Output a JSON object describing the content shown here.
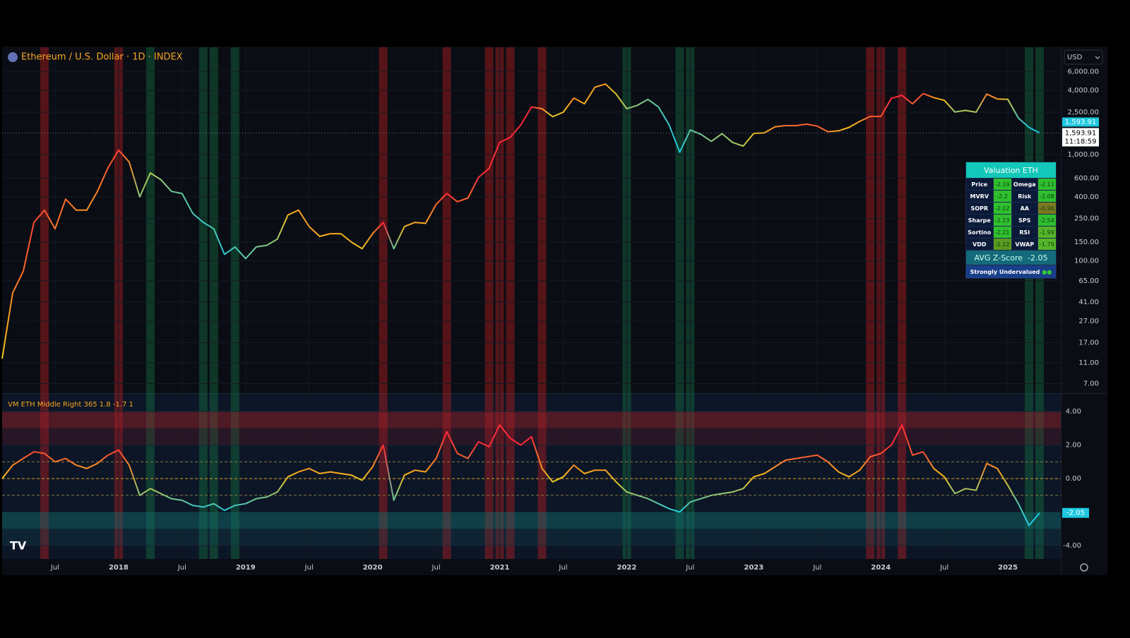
{
  "header": {
    "title": "Ethereum / U.S. Dollar · 1D · INDEX",
    "currency": "USD",
    "price_label": {
      "value": 1593.91,
      "label": "1,593.91"
    },
    "countdown": "11:18:59"
  },
  "chart_data": [
    {
      "type": "line",
      "yscale": "log",
      "x": [
        "2017-02",
        "2017-03",
        "2017-04",
        "2017-05",
        "2017-06",
        "2017-07",
        "2017-08",
        "2017-09",
        "2017-10",
        "2017-11",
        "2017-12",
        "2018-01",
        "2018-02",
        "2018-03",
        "2018-04",
        "2018-05",
        "2018-06",
        "2018-07",
        "2018-08",
        "2018-09",
        "2018-10",
        "2018-11",
        "2018-12",
        "2019-01",
        "2019-02",
        "2019-03",
        "2019-04",
        "2019-05",
        "2019-06",
        "2019-07",
        "2019-08",
        "2019-09",
        "2019-10",
        "2019-11",
        "2019-12",
        "2020-01",
        "2020-02",
        "2020-03",
        "2020-04",
        "2020-05",
        "2020-06",
        "2020-07",
        "2020-08",
        "2020-09",
        "2020-10",
        "2020-11",
        "2020-12",
        "2021-01",
        "2021-02",
        "2021-03",
        "2021-04",
        "2021-05",
        "2021-06",
        "2021-07",
        "2021-08",
        "2021-09",
        "2021-10",
        "2021-11",
        "2021-12",
        "2022-01",
        "2022-02",
        "2022-03",
        "2022-04",
        "2022-05",
        "2022-06",
        "2022-07",
        "2022-08",
        "2022-09",
        "2022-10",
        "2022-11",
        "2022-12",
        "2023-01",
        "2023-02",
        "2023-03",
        "2023-04",
        "2023-05",
        "2023-06",
        "2023-07",
        "2023-08",
        "2023-09",
        "2023-10",
        "2023-11",
        "2023-12",
        "2024-01",
        "2024-02",
        "2024-03",
        "2024-04",
        "2024-05",
        "2024-06",
        "2024-07",
        "2024-08",
        "2024-09",
        "2024-10",
        "2024-11",
        "2024-12",
        "2025-01",
        "2025-02",
        "2025-03",
        "2025-04"
      ],
      "series": [
        {
          "values": [
            12,
            50,
            80,
            230,
            300,
            200,
            380,
            300,
            300,
            450,
            750,
            1100,
            850,
            400,
            670,
            580,
            450,
            430,
            280,
            230,
            200,
            115,
            135,
            105,
            135,
            140,
            160,
            270,
            300,
            210,
            170,
            180,
            180,
            150,
            130,
            180,
            230,
            130,
            210,
            230,
            225,
            340,
            430,
            360,
            390,
            610,
            740,
            1300,
            1450,
            1900,
            2800,
            2700,
            2270,
            2500,
            3400,
            3000,
            4300,
            4600,
            3700,
            2700,
            2900,
            3300,
            2800,
            1900,
            1050,
            1700,
            1550,
            1330,
            1570,
            1300,
            1200,
            1580,
            1600,
            1820,
            1870,
            1870,
            1930,
            1850,
            1640,
            1670,
            1800,
            2050,
            2280,
            2280,
            3380,
            3600,
            3000,
            3750,
            3430,
            3230,
            2510,
            2600,
            2500,
            3700,
            3330,
            3300,
            2200,
            1800,
            1594
          ]
        }
      ],
      "xlim": [
        "2017-02",
        "2025-06"
      ],
      "xticks": [
        {
          "value": "2017-07",
          "label": "Jul"
        },
        {
          "value": "2018-01",
          "label": "2018"
        },
        {
          "value": "2018-07",
          "label": "Jul"
        },
        {
          "value": "2019-01",
          "label": "2019"
        },
        {
          "value": "2019-07",
          "label": "Jul"
        },
        {
          "value": "2020-01",
          "label": "2020"
        },
        {
          "value": "2020-07",
          "label": "Jul"
        },
        {
          "value": "2021-01",
          "label": "2021"
        },
        {
          "value": "2021-07",
          "label": "Jul"
        },
        {
          "value": "2022-01",
          "label": "2022"
        },
        {
          "value": "2022-07",
          "label": "Jul"
        },
        {
          "value": "2023-01",
          "label": "2023"
        },
        {
          "value": "2023-07",
          "label": "Jul"
        },
        {
          "value": "2024-01",
          "label": "2024"
        },
        {
          "value": "2024-07",
          "label": "Jul"
        },
        {
          "value": "2025-01",
          "label": "2025"
        }
      ],
      "ylim": [
        5.7,
        10200
      ],
      "yticks": [
        {
          "value": 6000,
          "label": "6,000.00"
        },
        {
          "value": 4000,
          "label": "4,000.00"
        },
        {
          "value": 2500,
          "label": "2,500.00"
        },
        {
          "value": 1000,
          "label": "1,000.00"
        },
        {
          "value": 600,
          "label": "600.00"
        },
        {
          "value": 400,
          "label": "400.00"
        },
        {
          "value": 250,
          "label": "250.00"
        },
        {
          "value": 150,
          "label": "150.00"
        },
        {
          "value": 100,
          "label": "100.00"
        },
        {
          "value": 65,
          "label": "65.00"
        },
        {
          "value": 41,
          "label": "41.00"
        },
        {
          "value": 27,
          "label": "27.00"
        },
        {
          "value": 17,
          "label": "17.00"
        },
        {
          "value": 11,
          "label": "11.00"
        },
        {
          "value": 7,
          "label": "7.00"
        }
      ],
      "highlights": [
        {
          "at": "2017-06",
          "color": "red"
        },
        {
          "at": "2018-01",
          "color": "red"
        },
        {
          "at": "2018-04",
          "color": "green"
        },
        {
          "at": "2018-09",
          "color": "green"
        },
        {
          "at": "2018-10",
          "color": "green"
        },
        {
          "at": "2018-12",
          "color": "green"
        },
        {
          "at": "2020-02",
          "color": "red"
        },
        {
          "at": "2020-08",
          "color": "red"
        },
        {
          "at": "2020-12",
          "color": "red"
        },
        {
          "at": "2021-01",
          "color": "red"
        },
        {
          "at": "2021-02",
          "color": "red"
        },
        {
          "at": "2021-05",
          "color": "red"
        },
        {
          "at": "2022-01",
          "color": "green"
        },
        {
          "at": "2022-06",
          "color": "green"
        },
        {
          "at": "2022-07",
          "color": "green"
        },
        {
          "at": "2023-12",
          "color": "red"
        },
        {
          "at": "2024-01",
          "color": "red"
        },
        {
          "at": "2024-03",
          "color": "red"
        },
        {
          "at": "2025-03",
          "color": "green"
        },
        {
          "at": "2025-04",
          "color": "green"
        }
      ],
      "color_scale": [
        {
          "value": -2,
          "color": "#1ec8e0"
        },
        {
          "value": 0,
          "color": "#f5c518"
        },
        {
          "value": 2,
          "color": "#ff2a3a"
        }
      ]
    },
    {
      "type": "line",
      "title": "VM ETH Middle Right 365 1.8 -1.7 1",
      "x": [
        "2017-02",
        "2017-03",
        "2017-04",
        "2017-05",
        "2017-06",
        "2017-07",
        "2017-08",
        "2017-09",
        "2017-10",
        "2017-11",
        "2017-12",
        "2018-01",
        "2018-02",
        "2018-03",
        "2018-04",
        "2018-05",
        "2018-06",
        "2018-07",
        "2018-08",
        "2018-09",
        "2018-10",
        "2018-11",
        "2018-12",
        "2019-01",
        "2019-02",
        "2019-03",
        "2019-04",
        "2019-05",
        "2019-06",
        "2019-07",
        "2019-08",
        "2019-09",
        "2019-10",
        "2019-11",
        "2019-12",
        "2020-01",
        "2020-02",
        "2020-03",
        "2020-04",
        "2020-05",
        "2020-06",
        "2020-07",
        "2020-08",
        "2020-09",
        "2020-10",
        "2020-11",
        "2020-12",
        "2021-01",
        "2021-02",
        "2021-03",
        "2021-04",
        "2021-05",
        "2021-06",
        "2021-07",
        "2021-08",
        "2021-09",
        "2021-10",
        "2021-11",
        "2021-12",
        "2022-01",
        "2022-02",
        "2022-03",
        "2022-04",
        "2022-05",
        "2022-06",
        "2022-07",
        "2022-08",
        "2022-09",
        "2022-10",
        "2022-11",
        "2022-12",
        "2023-01",
        "2023-02",
        "2023-03",
        "2023-04",
        "2023-05",
        "2023-06",
        "2023-07",
        "2023-08",
        "2023-09",
        "2023-10",
        "2023-11",
        "2023-12",
        "2024-01",
        "2024-02",
        "2024-03",
        "2024-04",
        "2024-05",
        "2024-06",
        "2024-07",
        "2024-08",
        "2024-09",
        "2024-10",
        "2024-11",
        "2024-12",
        "2025-01",
        "2025-02",
        "2025-03",
        "2025-04"
      ],
      "series": [
        {
          "values": [
            0,
            0.8,
            1.2,
            1.6,
            1.5,
            1.0,
            1.2,
            0.8,
            0.6,
            0.9,
            1.4,
            1.7,
            0.8,
            -1.0,
            -0.6,
            -0.9,
            -1.2,
            -1.3,
            -1.6,
            -1.7,
            -1.5,
            -1.9,
            -1.6,
            -1.5,
            -1.2,
            -1.1,
            -0.8,
            0.1,
            0.4,
            0.6,
            0.3,
            0.4,
            0.3,
            0.2,
            -0.1,
            0.7,
            2.0,
            -1.3,
            0.2,
            0.5,
            0.4,
            1.2,
            2.8,
            1.5,
            1.2,
            2.2,
            1.9,
            3.2,
            2.4,
            2.0,
            2.5,
            0.6,
            -0.2,
            0.1,
            0.8,
            0.3,
            0.5,
            0.5,
            -0.2,
            -0.8,
            -1.0,
            -1.2,
            -1.5,
            -1.8,
            -2.0,
            -1.4,
            -1.2,
            -1.0,
            -0.9,
            -0.8,
            -0.6,
            0.1,
            0.3,
            0.7,
            1.1,
            1.2,
            1.3,
            1.4,
            1.0,
            0.4,
            0.1,
            0.5,
            1.3,
            1.5,
            2.0,
            3.2,
            1.4,
            1.6,
            0.6,
            0.1,
            -0.9,
            -0.6,
            -0.7,
            0.9,
            0.6,
            -0.4,
            -1.5,
            -2.8,
            -2.05
          ]
        }
      ],
      "xlim": [
        "2017-02",
        "2025-06"
      ],
      "ylim": [
        -4.8,
        5.06
      ],
      "yticks": [
        {
          "value": 4,
          "label": "4.00"
        },
        {
          "value": 2,
          "label": "2.00"
        },
        {
          "value": 0,
          "label": "0.00"
        },
        {
          "value": -4,
          "label": "-4.00"
        }
      ],
      "guides": [
        1,
        0,
        -1
      ],
      "bands": [
        {
          "from": 3,
          "to": 4,
          "color": "red"
        },
        {
          "from": 2,
          "to": 3,
          "color": "red-faint"
        },
        {
          "from": -3,
          "to": -2,
          "color": "green"
        },
        {
          "from": -4,
          "to": -3,
          "color": "green-faint"
        }
      ]
    }
  ],
  "table": {
    "title": "Valuation ETH",
    "rows": [
      [
        "Price",
        -2.19,
        "Omega",
        -2.11
      ],
      [
        "MVRV",
        -2.2,
        "Risk",
        -2.08
      ],
      [
        "SOPR",
        -2.12,
        "AA",
        -0.96
      ],
      [
        "Sharpe",
        -2.23,
        "SPS",
        -2.54
      ],
      [
        "Sortino",
        -2.21,
        "RSI",
        -1.99
      ],
      [
        "VDD",
        -1.12,
        "VWAP",
        -1.79
      ]
    ],
    "avg_label": "AVG Z-Score",
    "avg_value": -2.05,
    "status": "Strongly Undervalued"
  }
}
